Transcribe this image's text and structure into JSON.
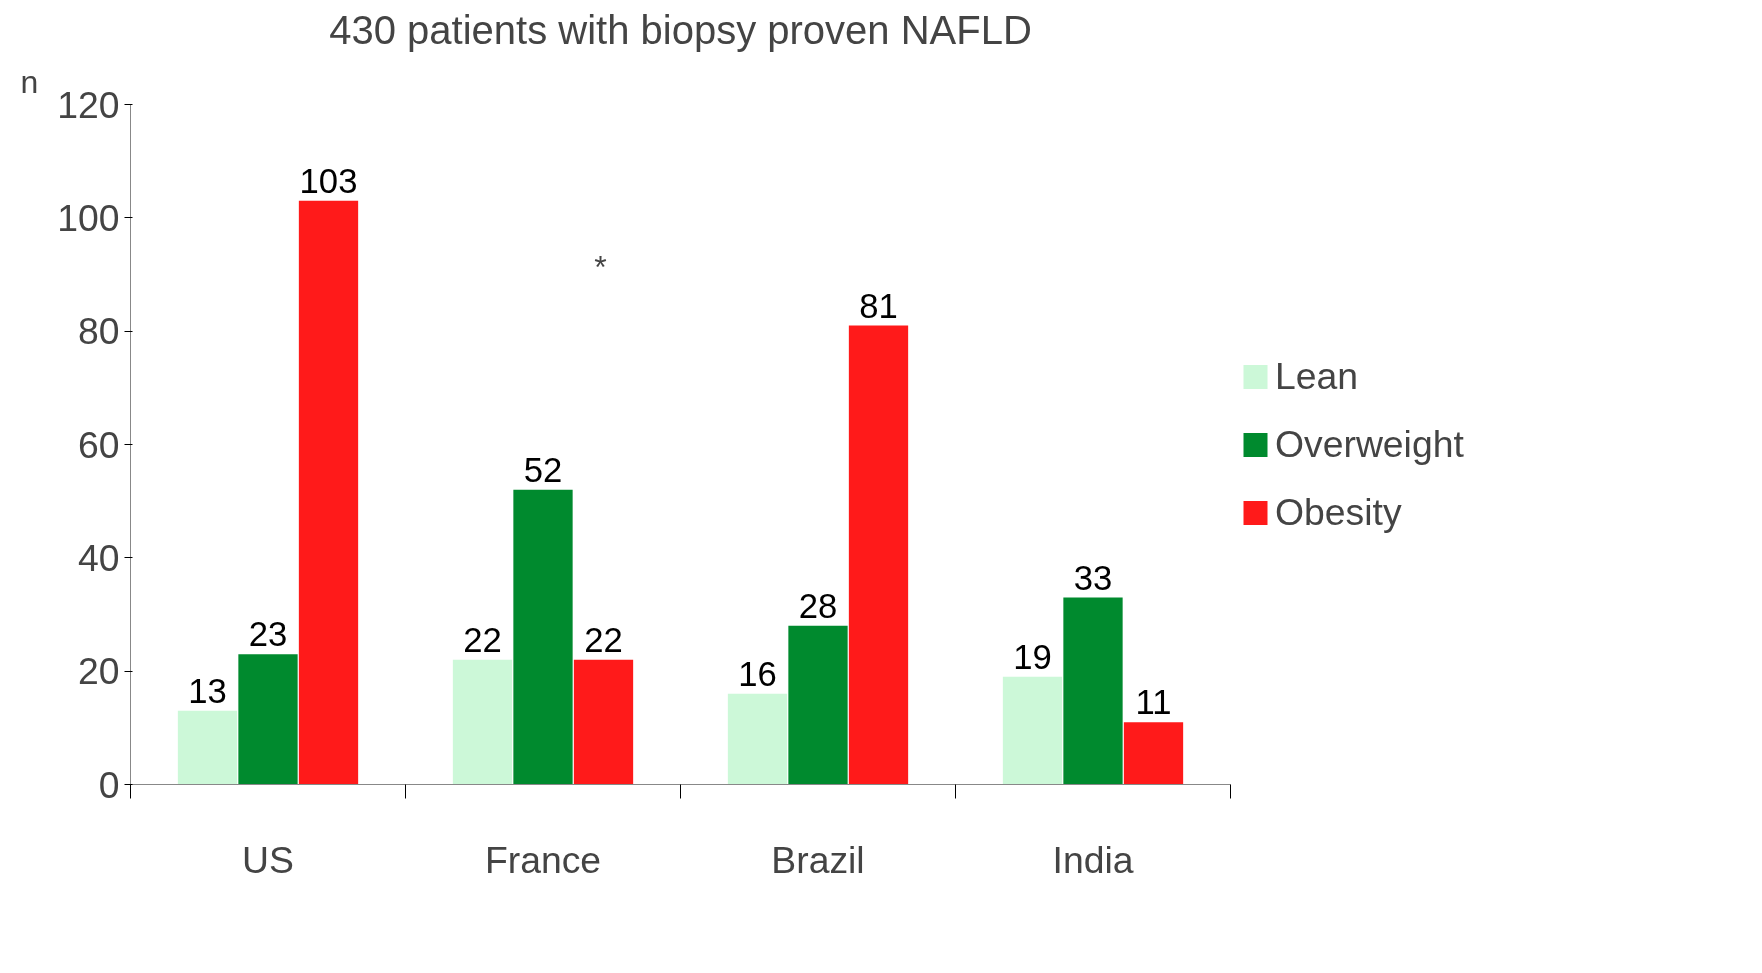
{
  "chart_data": {
    "type": "bar",
    "title": "430 patients with biopsy proven NAFLD",
    "ylabel": "n",
    "categories": [
      "US",
      "France",
      "Brazil",
      "India"
    ],
    "series": [
      {
        "name": "Lean",
        "color": "#ccf8d8",
        "values": [
          13,
          22,
          16,
          19
        ]
      },
      {
        "name": "Overweight",
        "color": "#008a2e",
        "values": [
          23,
          52,
          28,
          33
        ]
      },
      {
        "name": "Obesity",
        "color": "#ff1a1a",
        "values": [
          103,
          22,
          81,
          11
        ]
      }
    ],
    "ylim": [
      0,
      120
    ],
    "yticks": [
      0,
      20,
      40,
      60,
      80,
      100,
      120
    ],
    "grid": false,
    "legend": "right",
    "data_labels": true,
    "annotations": [
      "*"
    ]
  }
}
